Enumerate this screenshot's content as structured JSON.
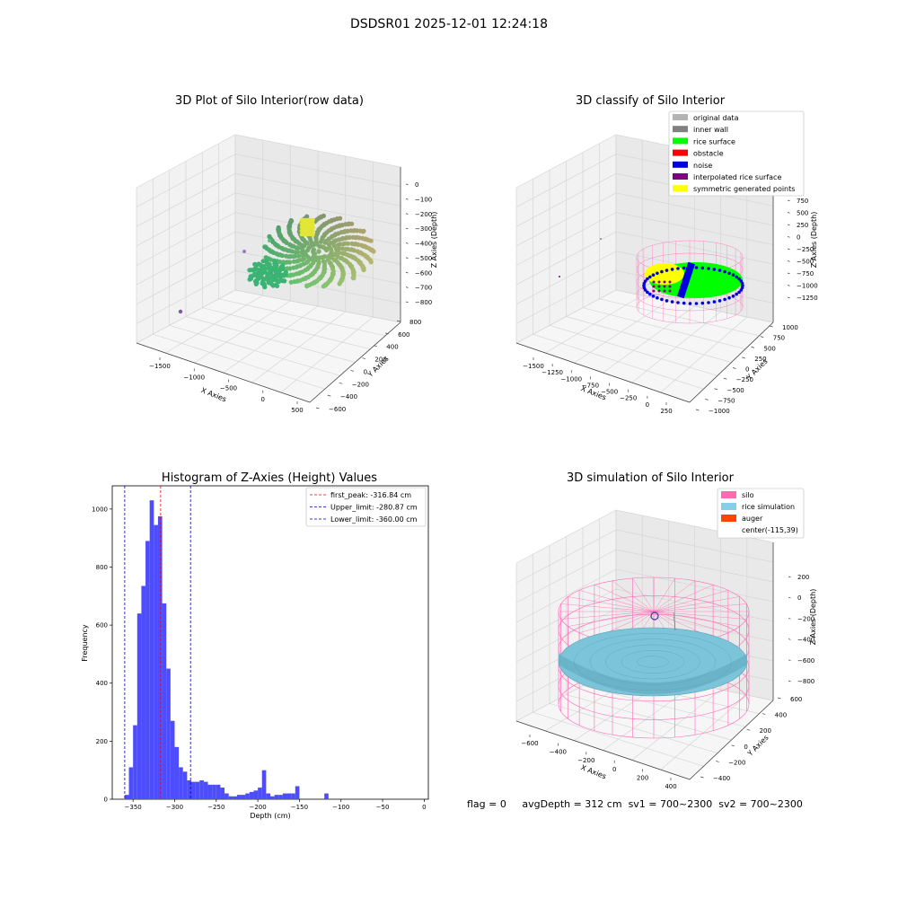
{
  "suptitle": "DSDSR01 2025-12-01 12:24:18",
  "panels": {
    "raw": {
      "title": "3D Plot of Silo Interior(row data)",
      "xlabel": "X Axies",
      "ylabel": "Y Axies",
      "zlabel": "Z Axies (Depth)",
      "xticks": [
        "−1500",
        "−1000",
        "−500",
        "0",
        "500"
      ],
      "yticks": [
        "−600",
        "−400",
        "−200",
        "0",
        "200",
        "400",
        "600",
        "800"
      ],
      "zticks": [
        "0",
        "−100",
        "−200",
        "−300",
        "−400",
        "−500",
        "−600",
        "−700",
        "−800"
      ]
    },
    "classify": {
      "title": "3D classify of Silo Interior",
      "xlabel": "X Axies",
      "ylabel": "Y Axies",
      "zlabel": "Z Axies (Depth)",
      "xticks": [
        "−1500",
        "−1250",
        "−1000",
        "−750",
        "−500",
        "−250",
        "0",
        "250"
      ],
      "yticks": [
        "−1000",
        "−750",
        "−500",
        "−250",
        "0",
        "250",
        "500",
        "750",
        "1000"
      ],
      "zticks": [
        "750",
        "500",
        "250",
        "0",
        "−250",
        "−500",
        "−750",
        "−1000",
        "−1250"
      ],
      "legend": [
        {
          "label": "original data",
          "color": "#b3b3b3"
        },
        {
          "label": "inner wall",
          "color": "#808080"
        },
        {
          "label": "rice surface",
          "color": "#00ff00"
        },
        {
          "label": "obstacle",
          "color": "#ff0000"
        },
        {
          "label": "noise",
          "color": "#0000dd"
        },
        {
          "label": "interpolated rice surface",
          "color": "#800080"
        },
        {
          "label": "symmetric generated points",
          "color": "#ffff00"
        }
      ]
    },
    "simulation": {
      "title": "3D simulation of Silo Interior",
      "xlabel": "X Axies",
      "ylabel": "Y Axies",
      "zlabel": "Z Axies (Depth)",
      "xticks": [
        "−600",
        "−400",
        "−200",
        "0",
        "200",
        "400"
      ],
      "yticks": [
        "−400",
        "−200",
        "0",
        "200",
        "400",
        "600"
      ],
      "zticks": [
        "200",
        "0",
        "−200",
        "−400",
        "−600",
        "−800"
      ],
      "legend": [
        {
          "label": "silo",
          "color": "#ff69b4"
        },
        {
          "label": "rice simulation",
          "color": "#87ceeb"
        },
        {
          "label": "auger",
          "color": "#ff4500"
        },
        {
          "label": "center(-115,39)",
          "color": ""
        }
      ]
    }
  },
  "status": {
    "flag": "flag = 0",
    "avg": "avgDepth = 312 cm",
    "sv1": "sv1 = 700~2300",
    "sv2": "sv2 = 700~2300"
  },
  "chart_data": {
    "type": "bar",
    "title": "Histogram of Z-Axies (Height) Values",
    "xlabel": "Depth (cm)",
    "ylabel": "Frequency",
    "xlim": [
      -375,
      5
    ],
    "ylim": [
      0,
      1080
    ],
    "xticks": [
      -350,
      -300,
      -250,
      -200,
      -150,
      -100,
      -50,
      0
    ],
    "xtick_labels": [
      "−350",
      "−300",
      "−250",
      "−200",
      "−150",
      "−100",
      "−50",
      "0"
    ],
    "yticks": [
      0,
      200,
      400,
      600,
      800,
      1000
    ],
    "bar_color": "#4d4dff",
    "bin_start": -360,
    "bin_width": 5,
    "values": [
      15,
      110,
      255,
      640,
      735,
      890,
      1030,
      945,
      975,
      675,
      450,
      270,
      180,
      110,
      95,
      65,
      60,
      60,
      65,
      60,
      50,
      50,
      50,
      40,
      20,
      10,
      10,
      15,
      15,
      20,
      25,
      30,
      40,
      100,
      20,
      10,
      15,
      15,
      20,
      20,
      20,
      45,
      2,
      0,
      0,
      0,
      0,
      0,
      20
    ],
    "lines": [
      {
        "label": "first_peak: -316.84 cm",
        "x": -316.84,
        "color": "#ff0000"
      },
      {
        "label": "Upper_limit: -280.87 cm",
        "x": -280.87,
        "color": "#0000aa"
      },
      {
        "label": "Lower_limit: -360.00 cm",
        "x": -360.0,
        "color": "#0000aa"
      }
    ],
    "legend_position": "top-right"
  }
}
